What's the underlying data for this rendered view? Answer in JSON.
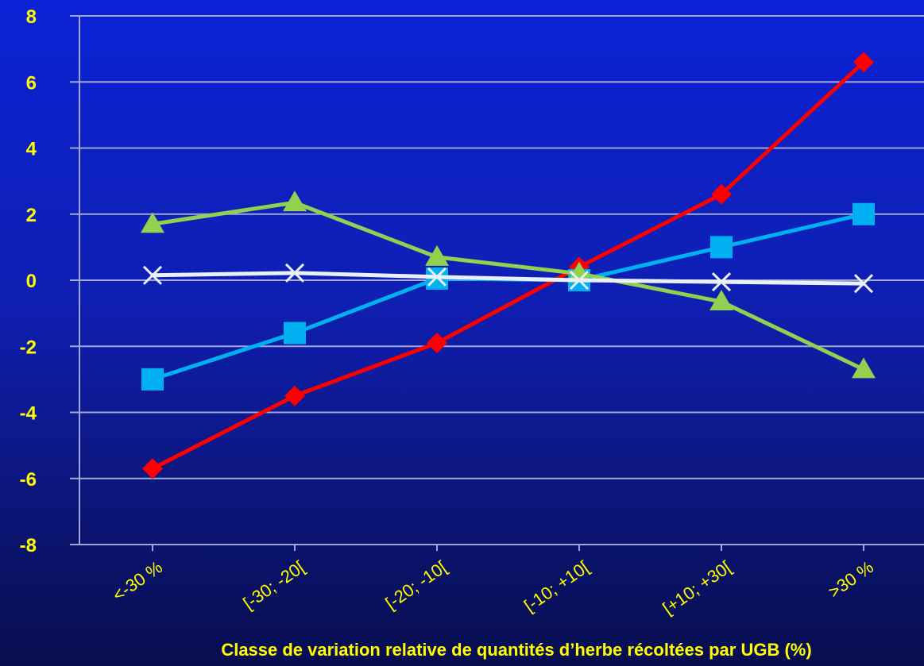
{
  "chart_data": {
    "type": "line",
    "title": "",
    "xlabel": "Classe de variation relative de quantités d’herbe récoltées par UGB (%)",
    "ylabel": "",
    "categories": [
      "<-30 %",
      "[-30; -20[",
      "[-20; -10[",
      "[-10; +10[",
      "[+10; +30[",
      ">30 %"
    ],
    "ylim": [
      -8,
      8
    ],
    "yticks": [
      -8,
      -6,
      -4,
      -2,
      0,
      2,
      4,
      6,
      8
    ],
    "ytick_labels": [
      "-8",
      "-6",
      "-4",
      "-2",
      "0",
      "2",
      "4",
      "6",
      "8"
    ],
    "grid": true,
    "legend": "none",
    "series": [
      {
        "values": [
          -5.7,
          -3.5,
          -1.9,
          0.4,
          2.6,
          6.6
        ],
        "color": "#ff0000",
        "marker": "diamond"
      },
      {
        "values": [
          -3.0,
          -1.6,
          0.05,
          0.0,
          1.0,
          2.0
        ],
        "color": "#00b0f0",
        "marker": "square"
      },
      {
        "values": [
          1.7,
          2.35,
          0.7,
          0.2,
          -0.65,
          -2.7
        ],
        "color": "#92d050",
        "marker": "triangle"
      },
      {
        "values": [
          0.15,
          0.22,
          0.1,
          0.0,
          -0.05,
          -0.1
        ],
        "color": "#e8f0f8",
        "marker": "x"
      }
    ]
  }
}
